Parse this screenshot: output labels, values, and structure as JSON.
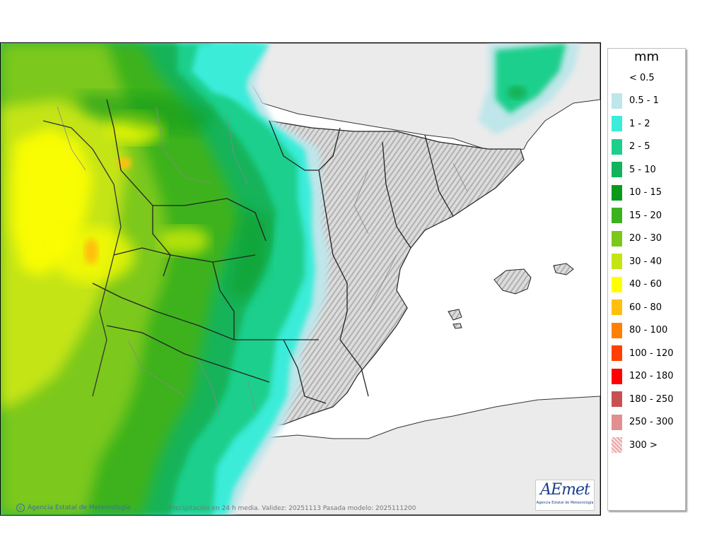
{
  "legend": {
    "unit": "mm",
    "items": [
      {
        "label": "< 0.5",
        "color": "#ffffff"
      },
      {
        "label": "0.5 - 1",
        "color": "#bfe6ea"
      },
      {
        "label": "1 - 2",
        "color": "#3aecd9"
      },
      {
        "label": "2 - 5",
        "color": "#1ecf8c"
      },
      {
        "label": "5 - 10",
        "color": "#12b35a"
      },
      {
        "label": "10 - 15",
        "color": "#0a9a1a"
      },
      {
        "label": "15 - 20",
        "color": "#3cb21e"
      },
      {
        "label": "20 - 30",
        "color": "#7cc81a"
      },
      {
        "label": "30 - 40",
        "color": "#c4e413"
      },
      {
        "label": "40 - 60",
        "color": "#ffff00"
      },
      {
        "label": "60 - 80",
        "color": "#ffbf0f"
      },
      {
        "label": "80 - 100",
        "color": "#ff8000"
      },
      {
        "label": "100 - 120",
        "color": "#ff4000"
      },
      {
        "label": "120 - 180",
        "color": "#ff0000"
      },
      {
        "label": "180 - 250",
        "color": "#c85050"
      },
      {
        "label": "250 - 300",
        "color": "#e09090"
      },
      {
        "label": "300 >",
        "color": "#f6d0d0"
      }
    ]
  },
  "map": {
    "credit": "Agencia Estatal de Meteorología",
    "caption": "Precipitación en 24 h media. Validez: 20251113 Pasada modelo: 2025111200",
    "logo_text": "AEmet",
    "logo_subtitle": "Agencia Estatal de Meteorología"
  }
}
